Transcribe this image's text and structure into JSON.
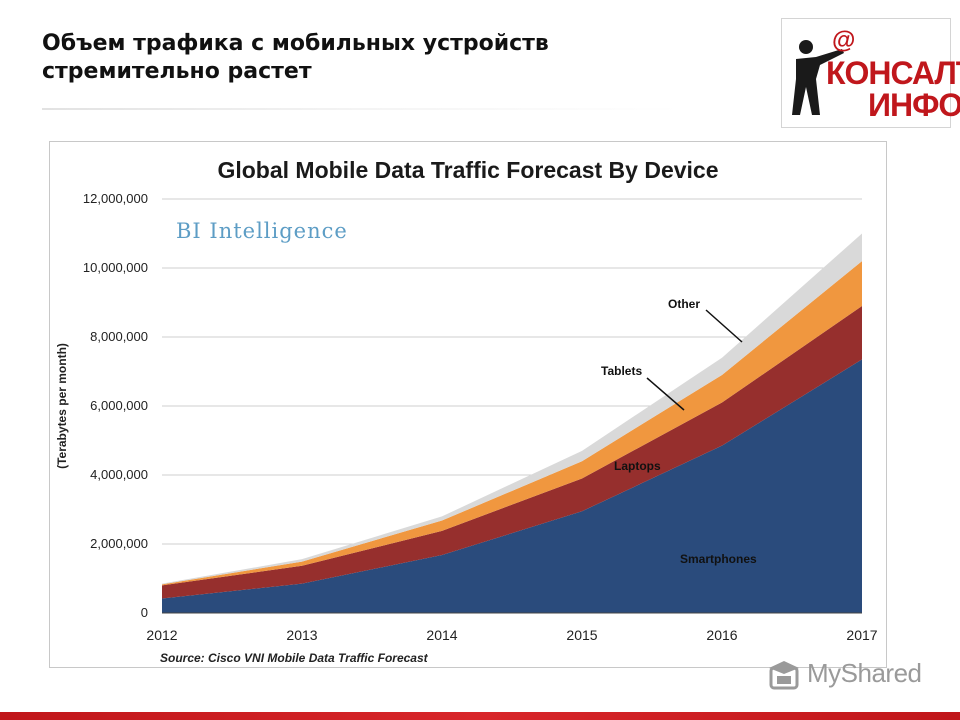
{
  "slide": {
    "title_lines": [
      "Объем трафика с мобильных устройств",
      "стремительно растет"
    ]
  },
  "logo": {
    "symbol": "@",
    "line1": "КОНСАЛТ",
    "line2": "ИНФО",
    "color": "#c0171c",
    "figure_color": "#1a1a1a"
  },
  "watermark": {
    "text": "MyShared",
    "icon": "mortarboard-icon"
  },
  "chart_data": {
    "type": "area",
    "stacked": true,
    "title": "Global Mobile Data Traffic Forecast By Device",
    "brand": "BI Intelligence",
    "source": "Source: Cisco VNI Mobile Data Traffic Forecast",
    "ylabel": "(Terabytes per month)",
    "xlabel": "",
    "x": [
      2012,
      2013,
      2014,
      2015,
      2016,
      2017
    ],
    "ylim": [
      0,
      12000000
    ],
    "yticks": [
      0,
      2000000,
      4000000,
      6000000,
      8000000,
      10000000,
      12000000
    ],
    "ytick_labels": [
      "0",
      "2,000,000",
      "4,000,000",
      "6,000,000",
      "8,000,000",
      "10,000,000",
      "12,000,000"
    ],
    "grid": true,
    "legend": "inline-labels",
    "series": [
      {
        "name": "Smartphones",
        "values": [
          420000,
          850000,
          1680000,
          2950000,
          4850000,
          7350000
        ],
        "color": "#2a4b7c"
      },
      {
        "name": "Laptops",
        "values": [
          380000,
          520000,
          700000,
          950000,
          1250000,
          1550000
        ],
        "color": "#962f2d"
      },
      {
        "name": "Tablets",
        "values": [
          30000,
          120000,
          300000,
          500000,
          800000,
          1300000
        ],
        "color": "#f0973f"
      },
      {
        "name": "Other",
        "values": [
          20000,
          70000,
          120000,
          300000,
          500000,
          800000
        ],
        "color": "#d9d9d9"
      }
    ]
  }
}
